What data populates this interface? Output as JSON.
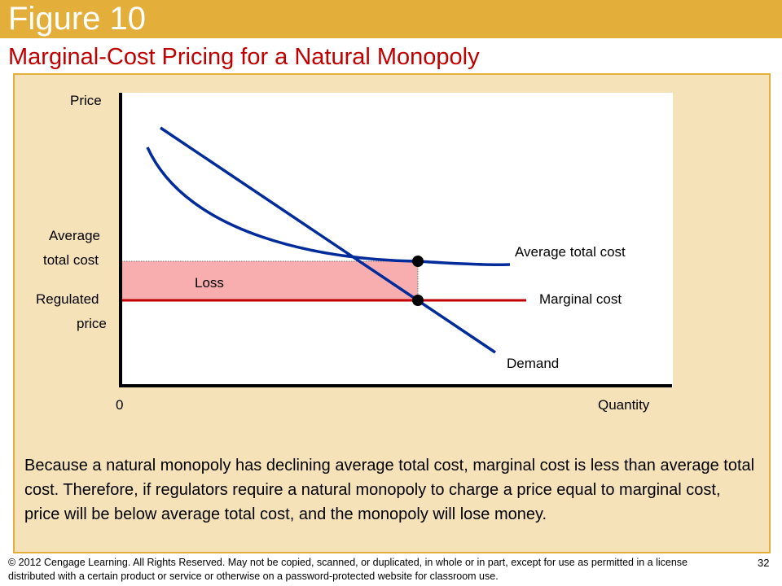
{
  "header": {
    "figure_label": "Figure 10",
    "subtitle": "Marginal-Cost Pricing for a Natural Monopoly"
  },
  "diagram": {
    "y_axis_label": "Price",
    "x_axis_label": "Quantity",
    "origin_label": "0",
    "atc_level_label_line1": "Average",
    "atc_level_label_line2": "total cost",
    "regulated_label_line1": "Regulated",
    "regulated_label_line2": "price",
    "loss_label": "Loss",
    "curve_atc_label": "Average total cost",
    "curve_mc_label": "Marginal cost",
    "curve_demand_label": "Demand",
    "colors": {
      "curves": "#002B9A",
      "marginal_cost": "#C00000",
      "loss_fill": "#F8AEAE",
      "axes": "#000000"
    }
  },
  "caption": "Because a natural monopoly has declining average total cost, marginal cost is less than average total cost. Therefore, if regulators require a natural monopoly to charge a price equal to marginal cost, price will be below average total cost, and the monopoly will lose money.",
  "footer": {
    "copyright": "© 2012 Cengage Learning. All Rights Reserved. May not be copied, scanned, or duplicated, in whole or in part, except for use as permitted in a license distributed with a certain product or service or otherwise on a password-protected website for classroom use.",
    "page_number": "32"
  }
}
